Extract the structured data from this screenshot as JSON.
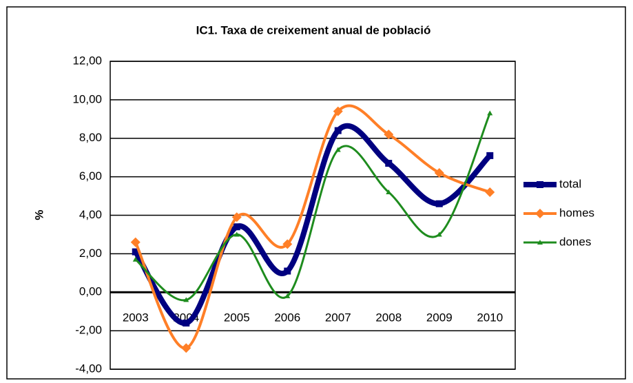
{
  "chart_data": {
    "type": "line",
    "title": "IC1. Taxa de creixement anual de població",
    "ylabel": "%",
    "categories": [
      "2003",
      "2004",
      "2005",
      "2006",
      "2007",
      "2008",
      "2009",
      "2010"
    ],
    "series": [
      {
        "name": "total",
        "color": "#000080",
        "marker": "square",
        "values": [
          2.1,
          -1.6,
          3.4,
          1.1,
          8.4,
          6.7,
          4.6,
          7.1
        ]
      },
      {
        "name": "homes",
        "color": "#ff7f27",
        "marker": "diamond",
        "values": [
          2.6,
          -2.9,
          3.9,
          2.5,
          9.4,
          8.2,
          6.2,
          5.2
        ]
      },
      {
        "name": "dones",
        "color": "#1e8c1e",
        "marker": "triangle",
        "values": [
          1.7,
          -0.4,
          3.0,
          -0.2,
          7.4,
          5.2,
          3.0,
          9.3
        ]
      }
    ],
    "ylim": [
      -4,
      12
    ],
    "yticks": [
      {
        "value": -4,
        "label": "-4,00"
      },
      {
        "value": -2,
        "label": "-2,00"
      },
      {
        "value": 0,
        "label": "0,00"
      },
      {
        "value": 2,
        "label": "2,00"
      },
      {
        "value": 4,
        "label": "4,00"
      },
      {
        "value": 6,
        "label": "6,00"
      },
      {
        "value": 8,
        "label": "8,00"
      },
      {
        "value": 10,
        "label": "10,00"
      },
      {
        "value": 12,
        "label": "12,00"
      }
    ],
    "grid": true,
    "legend": "right"
  }
}
